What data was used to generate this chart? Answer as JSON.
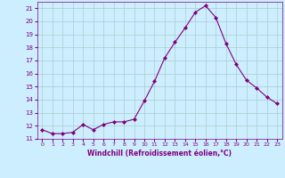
{
  "x": [
    0,
    1,
    2,
    3,
    4,
    5,
    6,
    7,
    8,
    9,
    10,
    11,
    12,
    13,
    14,
    15,
    16,
    17,
    18,
    19,
    20,
    21,
    22,
    23
  ],
  "y": [
    11.7,
    11.4,
    11.4,
    11.5,
    12.1,
    11.7,
    12.1,
    12.3,
    12.3,
    12.5,
    13.9,
    15.4,
    17.2,
    18.4,
    19.5,
    20.7,
    21.2,
    20.3,
    18.3,
    16.7,
    15.5,
    14.9,
    14.2,
    13.7
  ],
  "line_color": "#800080",
  "marker": "D",
  "marker_size": 2,
  "bg_color": "#cceeff",
  "grid_color": "#aacccc",
  "xlabel": "Windchill (Refroidissement éolien,°C)",
  "xlabel_color": "#800080",
  "tick_color": "#800080",
  "xlim": [
    -0.5,
    23.5
  ],
  "ylim": [
    11,
    21.5
  ],
  "yticks": [
    11,
    12,
    13,
    14,
    15,
    16,
    17,
    18,
    19,
    20,
    21
  ],
  "xticks": [
    0,
    1,
    2,
    3,
    4,
    5,
    6,
    7,
    8,
    9,
    10,
    11,
    12,
    13,
    14,
    15,
    16,
    17,
    18,
    19,
    20,
    21,
    22,
    23
  ]
}
